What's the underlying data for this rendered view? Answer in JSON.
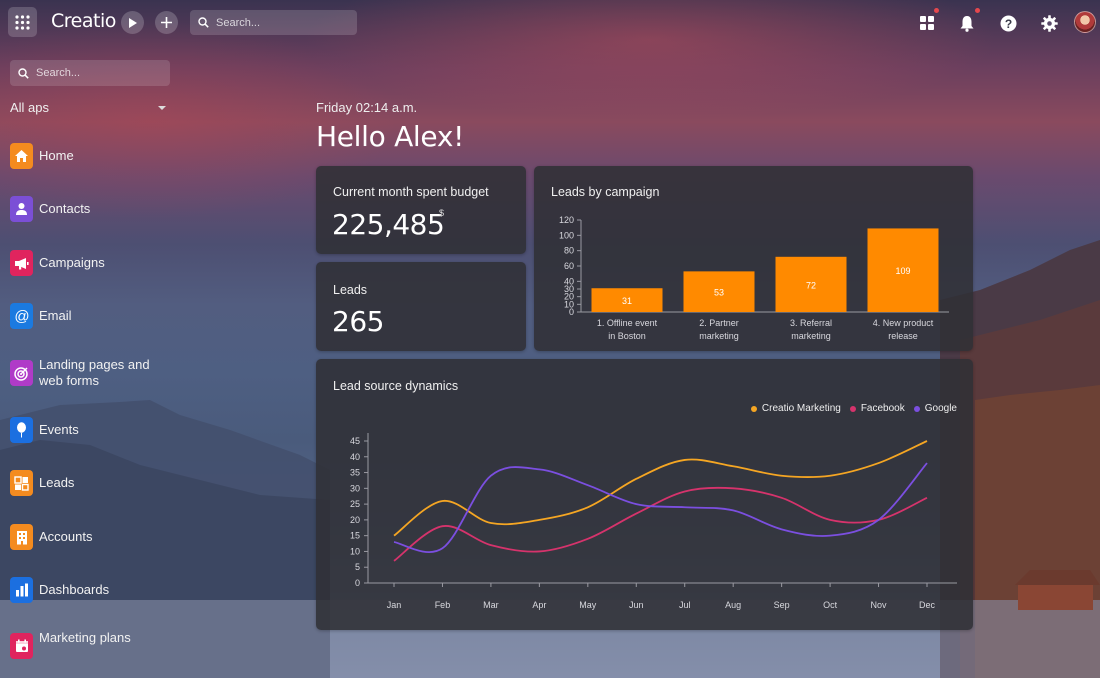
{
  "topbar": {
    "logo": "Creatio",
    "search_placeholder": "Search..."
  },
  "sidebar": {
    "search_placeholder": "Search...",
    "all_apps": "All aps",
    "items": [
      {
        "label": "Home",
        "icon": "home-icon",
        "color": "#f48b1f"
      },
      {
        "label": "Contacts",
        "icon": "contact-icon",
        "color": "#7b4fd6"
      },
      {
        "label": "Campaigns",
        "icon": "megaphone-icon",
        "color": "#e0245e"
      },
      {
        "label": "Email",
        "icon": "at-icon",
        "color": "#1b7ae0"
      },
      {
        "label": "Landing pages and web forms",
        "icon": "target-icon",
        "color": "#b03bc8"
      },
      {
        "label": "Events",
        "icon": "balloon-icon",
        "color": "#1b6fe0"
      },
      {
        "label": "Leads",
        "icon": "leads-icon",
        "color": "#f48b1f"
      },
      {
        "label": "Accounts",
        "icon": "building-icon",
        "color": "#f48b1f"
      },
      {
        "label": "Dashboards",
        "icon": "bar-chart-icon",
        "color": "#1b6fe0"
      },
      {
        "label": "Marketing plans",
        "icon": "calendar-icon",
        "color": "#e0245e"
      }
    ]
  },
  "greeting": {
    "date": "Friday 02:14 a.m.",
    "hello": "Hello Alex!"
  },
  "budget": {
    "title": "Current month spent budget",
    "value": "225,485",
    "currency": "$"
  },
  "leads": {
    "title": "Leads",
    "value": "265"
  },
  "colors": {
    "orange": "#ff8a00",
    "facebook": "#d6336c",
    "google": "#7b4fe0",
    "creatio": "#f5a623"
  },
  "chart_data": [
    {
      "type": "bar",
      "title": "Leads by campaign",
      "categories": [
        "1. Offline event in Boston",
        "2. Partner marketing",
        "3. Referral marketing",
        "4. New product release"
      ],
      "category_lines": [
        [
          "1. Offline event",
          "in Boston"
        ],
        [
          "2. Partner",
          "marketing"
        ],
        [
          "3. Referral",
          "marketing"
        ],
        [
          "4. New product",
          "release"
        ]
      ],
      "values": [
        31,
        53,
        72,
        109
      ],
      "yticks": [
        0,
        10,
        20,
        30,
        40,
        60,
        80,
        100,
        120
      ],
      "ylim": [
        0,
        120
      ],
      "color": "#ff8a00"
    },
    {
      "type": "line",
      "title": "Lead source dynamics",
      "categories": [
        "Jan",
        "Feb",
        "Mar",
        "Apr",
        "May",
        "Jun",
        "Jul",
        "Aug",
        "Sep",
        "Oct",
        "Nov",
        "Dec"
      ],
      "yticks": [
        0,
        5,
        10,
        15,
        20,
        25,
        30,
        35,
        40,
        45
      ],
      "ylim": [
        0,
        45
      ],
      "legend_position": "top-right",
      "series": [
        {
          "name": "Creatio Marketing",
          "color": "#f5a623",
          "values": [
            15,
            26,
            19,
            20,
            24,
            33,
            39,
            37,
            34,
            34,
            38,
            45
          ]
        },
        {
          "name": "Facebook",
          "color": "#d6336c",
          "values": [
            7,
            18,
            12,
            10,
            14,
            22,
            29,
            30,
            27,
            20,
            20,
            27
          ]
        },
        {
          "name": "Google",
          "color": "#7b4fe0",
          "values": [
            13,
            11,
            34,
            36,
            31,
            25,
            24,
            23,
            17,
            15,
            20,
            38
          ]
        }
      ]
    }
  ]
}
